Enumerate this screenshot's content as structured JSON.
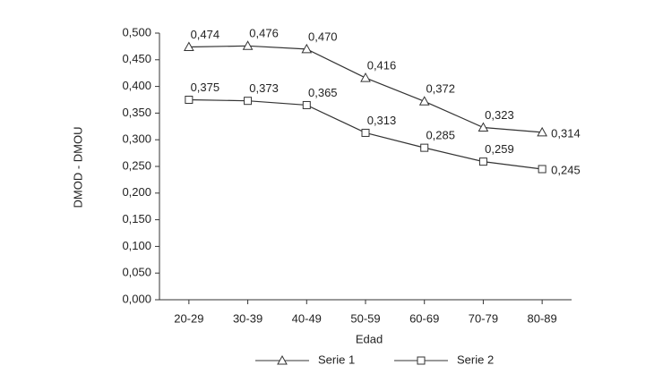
{
  "chart_data": {
    "type": "line",
    "x_label": "Edad",
    "y_label": "DMOD - DMOU",
    "categories": [
      "20-29",
      "30-39",
      "40-49",
      "50-59",
      "60-69",
      "70-79",
      "80-89"
    ],
    "series": [
      {
        "name": "Serie 1",
        "color": "#333333",
        "marker": "triangle",
        "values": [
          0.474,
          0.476,
          0.47,
          0.416,
          0.372,
          0.323,
          0.314
        ],
        "value_labels": [
          "0,474",
          "0,476",
          "0,470",
          "0,416",
          "0,372",
          "0,323",
          "0,314"
        ]
      },
      {
        "name": "Serie 2",
        "color": "#333333",
        "marker": "square",
        "values": [
          0.375,
          0.373,
          0.365,
          0.313,
          0.285,
          0.259,
          0.245
        ],
        "value_labels": [
          "0,375",
          "0,373",
          "0,365",
          "0,313",
          "0,285",
          "0,259",
          "0,245"
        ]
      }
    ],
    "ylim": [
      0,
      0.5
    ],
    "yticks": [
      {
        "value": 0,
        "label": "0,000"
      },
      {
        "value": 0.05,
        "label": "0,050"
      },
      {
        "value": 0.1,
        "label": "0,100"
      },
      {
        "value": 0.15,
        "label": "0,150"
      },
      {
        "value": 0.2,
        "label": "0,200"
      },
      {
        "value": 0.25,
        "label": "0,250"
      },
      {
        "value": 0.3,
        "label": "0,300"
      },
      {
        "value": 0.35,
        "label": "0,350"
      },
      {
        "value": 0.4,
        "label": "0,400"
      },
      {
        "value": 0.45,
        "label": "0,450"
      },
      {
        "value": 0.5,
        "label": "0,500"
      }
    ],
    "grid": false
  }
}
